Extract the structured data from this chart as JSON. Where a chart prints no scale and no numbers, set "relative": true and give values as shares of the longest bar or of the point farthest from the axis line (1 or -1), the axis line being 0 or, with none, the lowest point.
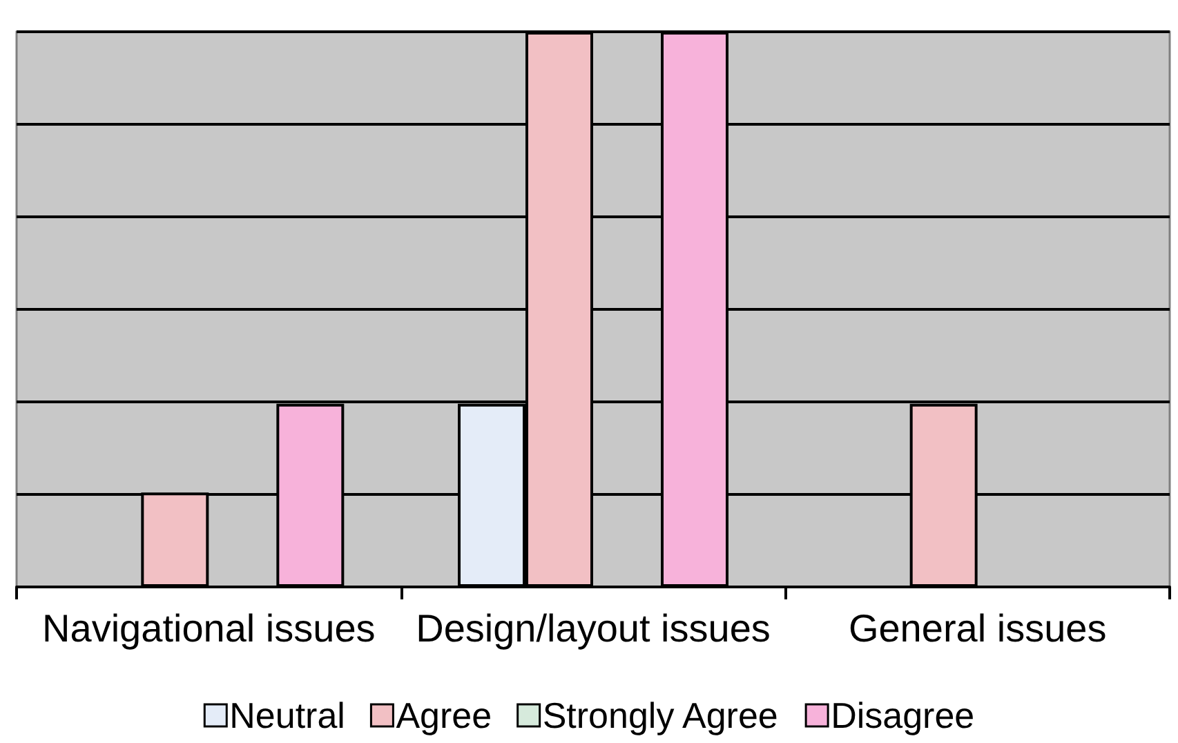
{
  "chart_data": {
    "type": "bar",
    "relative": true,
    "grid": "y",
    "legend": "bottom",
    "categories": [
      "Navigational issues",
      "Design/layout issues",
      "General issues"
    ],
    "series": [
      {
        "name": "Neutral",
        "color": "#e4ecf8",
        "values": [
          0,
          0.33,
          0
        ]
      },
      {
        "name": "Agree",
        "color": "#f2c0c4",
        "values": [
          0.17,
          1,
          0.33
        ]
      },
      {
        "name": "Strongly Agree",
        "color": "#d6eadc",
        "values": [
          0,
          0,
          0
        ]
      },
      {
        "name": "Disagree",
        "color": "#f7b2da",
        "values": [
          0.33,
          1,
          0
        ]
      }
    ]
  }
}
